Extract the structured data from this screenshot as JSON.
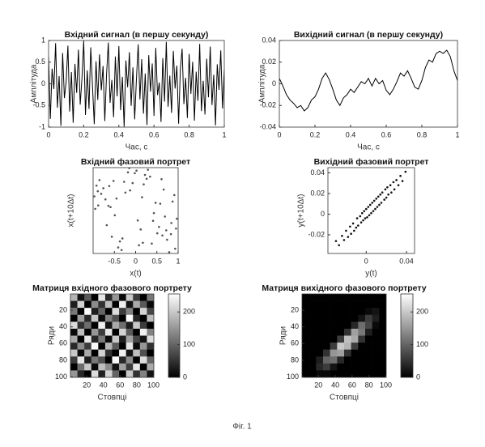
{
  "chart_data": [
    {
      "type": "line",
      "title": "Вхідний сигнал (в першу секунду)",
      "xlabel": "Час, с",
      "ylabel": "Амплітуда",
      "color": "#000000",
      "x": [
        0,
        0.01,
        0.02,
        0.03,
        0.04,
        0.05,
        0.06,
        0.07,
        0.08,
        0.09,
        0.1,
        0.11,
        0.12,
        0.13,
        0.14,
        0.15,
        0.16,
        0.17,
        0.18,
        0.19,
        0.2,
        0.21,
        0.22,
        0.23,
        0.24,
        0.25,
        0.26,
        0.27,
        0.28,
        0.29,
        0.3,
        0.31,
        0.32,
        0.33,
        0.34,
        0.35,
        0.36,
        0.37,
        0.38,
        0.39,
        0.4,
        0.41,
        0.42,
        0.43,
        0.44,
        0.45,
        0.46,
        0.47,
        0.48,
        0.49,
        0.5,
        0.51,
        0.52,
        0.53,
        0.54,
        0.55,
        0.56,
        0.57,
        0.58,
        0.59,
        0.6,
        0.61,
        0.62,
        0.63,
        0.64,
        0.65,
        0.66,
        0.67,
        0.68,
        0.69,
        0.7,
        0.71,
        0.72,
        0.73,
        0.74,
        0.75,
        0.76,
        0.77,
        0.78,
        0.79,
        0.8,
        0.81,
        0.82,
        0.83,
        0.84,
        0.85,
        0.86,
        0.87,
        0.88,
        0.89,
        0.9,
        0.91,
        0.92,
        0.93,
        0.94,
        0.95,
        0.96,
        0.97,
        0.98,
        0.99,
        1
      ],
      "values": [
        0.62,
        -0.81,
        0.35,
        -0.12,
        0.94,
        -0.55,
        0.18,
        -0.97,
        0.71,
        -0.33,
        0.05,
        0.88,
        -0.64,
        0.27,
        -0.9,
        0.46,
        -0.21,
        0.79,
        -0.48,
        0.13,
        0.99,
        -0.72,
        0.31,
        -0.58,
        0.84,
        -0.06,
        -0.93,
        0.52,
        -0.37,
        0.68,
        -0.15,
        0.41,
        -0.86,
        0.22,
        0.95,
        -0.44,
        0.09,
        -0.77,
        0.63,
        -0.29,
        0.87,
        -0.61,
        0.16,
        -0.99,
        0.54,
        -0.08,
        0.73,
        -0.51,
        0.38,
        -0.82,
        0.11,
        0.91,
        -0.36,
        0.57,
        -0.69,
        0.24,
        -0.95,
        0.66,
        -0.18,
        0.47,
        -0.74,
        0.83,
        -0.26,
        0.03,
        -0.88,
        0.59,
        -0.41,
        0.97,
        -0.53,
        0.19,
        -0.67,
        0.76,
        -0.11,
        0.42,
        -0.92,
        0.34,
        0.81,
        -0.47,
        0.14,
        -0.79,
        0.69,
        -0.23,
        0.51,
        -0.85,
        0.28,
        -0.39,
        0.92,
        -0.63,
        0.07,
        -0.71,
        0.58,
        -0.31,
        0.86,
        -0.49,
        0.21,
        -0.96,
        0.45,
        -0.14,
        0.77,
        -0.57,
        0.33
      ],
      "xlim": [
        0,
        1
      ],
      "xticks": [
        0,
        0.2,
        0.4,
        0.6,
        0.8,
        1
      ],
      "ylim": [
        -1,
        1
      ],
      "yticks": [
        -1,
        -0.5,
        0,
        0.5,
        1
      ]
    },
    {
      "type": "line",
      "title": "Вихідний сигнал (в першу секунду)",
      "xlabel": "Час, с",
      "ylabel": "Амплітуда",
      "color": "#000000",
      "x": [
        0,
        0.02,
        0.04,
        0.06,
        0.08,
        0.1,
        0.12,
        0.14,
        0.16,
        0.18,
        0.2,
        0.22,
        0.24,
        0.26,
        0.28,
        0.3,
        0.32,
        0.34,
        0.36,
        0.38,
        0.4,
        0.42,
        0.44,
        0.46,
        0.48,
        0.5,
        0.52,
        0.54,
        0.56,
        0.58,
        0.6,
        0.62,
        0.64,
        0.66,
        0.68,
        0.7,
        0.72,
        0.74,
        0.76,
        0.78,
        0.8,
        0.82,
        0.84,
        0.86,
        0.88,
        0.9,
        0.92,
        0.94,
        0.96,
        0.98,
        1
      ],
      "values": [
        0.005,
        -0.002,
        -0.01,
        -0.015,
        -0.018,
        -0.022,
        -0.02,
        -0.025,
        -0.022,
        -0.015,
        -0.012,
        -0.005,
        0.005,
        0.01,
        0.004,
        -0.005,
        -0.015,
        -0.02,
        -0.013,
        -0.01,
        -0.005,
        -0.008,
        -0.003,
        0.002,
        0,
        0.005,
        -0.002,
        0.005,
        0,
        0.003,
        -0.006,
        -0.01,
        -0.005,
        0.002,
        0.01,
        0.007,
        0.012,
        0.005,
        -0.003,
        -0.005,
        0.003,
        0.015,
        0.022,
        0.02,
        0.028,
        0.03,
        0.028,
        0.031,
        0.025,
        0.012,
        0.003
      ],
      "xlim": [
        0,
        1
      ],
      "xticks": [
        0,
        0.2,
        0.4,
        0.6,
        0.8,
        1
      ],
      "ylim": [
        -0.04,
        0.04
      ],
      "yticks": [
        -0.04,
        -0.02,
        0,
        0.02,
        0.04
      ]
    },
    {
      "type": "scatter",
      "title": "Вхідний фазовий портрет",
      "xlabel": "x(t)",
      "ylabel": "x(t+10Δt)",
      "color": "#555555",
      "x": [
        0.12,
        -0.85,
        0.47,
        -0.33,
        0.91,
        -0.62,
        0.05,
        0.74,
        -0.18,
        -0.95,
        0.38,
        0.66,
        -0.49,
        0.22,
        -0.71,
        0.83,
        -0.07,
        0.55,
        -0.88,
        0.29,
        -0.41,
        0.97,
        -0.24,
        0.61,
        -0.56,
        0.15,
        0.79,
        -0.92,
        0.43,
        -0.13,
        0.87,
        -0.68,
        0.34,
        -0.37,
        0.02,
        0.69,
        -0.81,
        0.51,
        -0.27,
        0.93,
        -0.59,
        0.19,
        0.72,
        -0.45,
        0.08,
        -0.76,
        0.58,
        -0.02,
        0.84,
        -0.31,
        0.26,
        -0.97,
        0.63,
        -0.15,
        0.41,
        -0.64,
        0.95,
        -0.52,
        0.17,
        -0.89
      ],
      "y": [
        -0.44,
        0.71,
        0.18,
        -0.92,
        0.36,
        0.57,
        -0.23,
        -0.68,
        0.89,
        0.04,
        -0.77,
        0.49,
        -0.11,
        0.83,
        0.26,
        -0.55,
        0.64,
        -0.38,
        0.12,
        0.95,
        -0.86,
        -0.19,
        0.42,
        0.73,
        -0.61,
        0.31,
        -0.97,
        0.58,
        -0.06,
        0.47,
        0.21,
        -0.34,
        0.79,
        -0.72,
        0.93,
        -0.14,
        0.39,
        -0.53,
        0.67,
        -0.89,
        0.08,
        0.61,
        -0.46,
        0.28,
        -0.81,
        0.52,
        0.16,
        0.87,
        -0.29,
        -0.65,
        0.74,
        0.33,
        -0.58,
        0.99,
        -0.24,
        0.11,
        -0.42,
        0.69,
        -0.75,
        0.45
      ],
      "xlim": [
        -1,
        1
      ],
      "xticks": [
        -0.5,
        0,
        0.5,
        1
      ],
      "ylim": [
        -1,
        1
      ]
    },
    {
      "type": "scatter",
      "title": "Вихідний фазовий портрет",
      "xlabel": "y(t)",
      "ylabel": "y(t+10Δt)",
      "color": "#111111",
      "x": [
        -0.03,
        -0.027,
        -0.024,
        -0.022,
        -0.02,
        -0.018,
        -0.016,
        -0.015,
        -0.013,
        -0.012,
        -0.01,
        -0.009,
        -0.008,
        -0.006,
        -0.005,
        -0.004,
        -0.003,
        -0.002,
        -0.001,
        0,
        0.001,
        0.002,
        0.003,
        0.004,
        0.005,
        0.006,
        0.007,
        0.008,
        0.009,
        0.01,
        0.011,
        0.012,
        0.013,
        0.014,
        0.015,
        0.016,
        0.018,
        0.019,
        0.02,
        0.021,
        0.022,
        0.024,
        0.025,
        0.027,
        0.028,
        0.03,
        0.032,
        0.034,
        0.036,
        0.039
      ],
      "y": [
        -0.026,
        -0.03,
        -0.021,
        -0.025,
        -0.016,
        -0.022,
        -0.012,
        -0.019,
        -0.009,
        -0.016,
        -0.013,
        -0.004,
        -0.011,
        -0.002,
        -0.008,
        0.001,
        -0.006,
        0.003,
        -0.004,
        0.005,
        -0.003,
        0.007,
        -0.001,
        0.009,
        0.001,
        0.011,
        0.003,
        0.013,
        0.005,
        0.015,
        0.007,
        0.017,
        0.009,
        0.019,
        0.011,
        0.021,
        0.014,
        0.024,
        0.016,
        0.026,
        0.019,
        0.028,
        0.021,
        0.031,
        0.024,
        0.033,
        0.028,
        0.037,
        0.032,
        0.041
      ],
      "xlim": [
        -0.038,
        0.048
      ],
      "xticks": [
        0,
        0.04
      ],
      "ylim": [
        -0.038,
        0.045
      ],
      "yticks": [
        -0.02,
        0,
        0.02,
        0.04
      ]
    },
    {
      "type": "heatmap",
      "title": "Матриця вхідного фазового портрету",
      "xlabel": "Стовпці",
      "ylabel": "Ряди",
      "z": [
        [
          180,
          20,
          90,
          0,
          230,
          40,
          150,
          10,
          200,
          60,
          0,
          120
        ],
        [
          30,
          210,
          0,
          140,
          50,
          190,
          0,
          240,
          20,
          170,
          90,
          10
        ],
        [
          120,
          0,
          250,
          30,
          100,
          0,
          220,
          60,
          130,
          0,
          210,
          70
        ],
        [
          0,
          160,
          40,
          200,
          10,
          130,
          80,
          0,
          250,
          40,
          0,
          190
        ],
        [
          220,
          50,
          110,
          0,
          240,
          20,
          170,
          110,
          30,
          200,
          60,
          0
        ],
        [
          10,
          190,
          0,
          150,
          60,
          230,
          0,
          210,
          90,
          0,
          240,
          130
        ],
        [
          170,
          0,
          230,
          40,
          120,
          10,
          200,
          30,
          160,
          70,
          20,
          220
        ],
        [
          40,
          140,
          60,
          250,
          0,
          180,
          90,
          0,
          230,
          10,
          150,
          50
        ],
        [
          200,
          10,
          170,
          0,
          210,
          50,
          0,
          240,
          20,
          190,
          80,
          0
        ],
        [
          60,
          230,
          30,
          120,
          80,
          0,
          250,
          40,
          140,
          0,
          220,
          100
        ],
        [
          0,
          110,
          200,
          10,
          190,
          140,
          20,
          160,
          60,
          230,
          0,
          170
        ],
        [
          150,
          40,
          0,
          220,
          30,
          210,
          100,
          0,
          200,
          50,
          130,
          20
        ]
      ],
      "xlim": [
        0.5,
        100.5
      ],
      "xticks": [
        20,
        40,
        60,
        80,
        100
      ],
      "ylim": [
        0.5,
        100.5
      ],
      "yticks": [
        20,
        40,
        60,
        80,
        100
      ],
      "y_reversed": true,
      "clim": [
        0,
        255
      ],
      "cticks": [
        0,
        100,
        200
      ],
      "colormap": "gray"
    },
    {
      "type": "heatmap",
      "title": "Матриця вихідного фазового портрету",
      "xlabel": "Стовпці",
      "ylabel": "Ряди",
      "z": [
        [
          0,
          0,
          0,
          0,
          0,
          0,
          0,
          0,
          0,
          0,
          0,
          0
        ],
        [
          0,
          0,
          0,
          0,
          0,
          0,
          0,
          0,
          0,
          0,
          0,
          0
        ],
        [
          0,
          0,
          0,
          0,
          0,
          0,
          0,
          0,
          0,
          10,
          20,
          0
        ],
        [
          0,
          0,
          0,
          0,
          0,
          0,
          0,
          0,
          20,
          60,
          30,
          0
        ],
        [
          0,
          0,
          0,
          0,
          0,
          0,
          0,
          40,
          110,
          70,
          10,
          0
        ],
        [
          0,
          0,
          0,
          0,
          0,
          0,
          50,
          160,
          120,
          30,
          0,
          0
        ],
        [
          0,
          0,
          0,
          0,
          0,
          60,
          190,
          170,
          50,
          0,
          0,
          0
        ],
        [
          0,
          0,
          0,
          0,
          60,
          200,
          180,
          60,
          0,
          0,
          0,
          0
        ],
        [
          0,
          0,
          0,
          50,
          150,
          160,
          50,
          0,
          0,
          0,
          0,
          0
        ],
        [
          0,
          0,
          30,
          100,
          110,
          40,
          0,
          0,
          0,
          0,
          0,
          0
        ],
        [
          0,
          0,
          40,
          60,
          20,
          0,
          0,
          0,
          0,
          0,
          0,
          0
        ],
        [
          0,
          0,
          10,
          10,
          0,
          0,
          0,
          0,
          0,
          0,
          0,
          0
        ]
      ],
      "xlim": [
        0.5,
        100.5
      ],
      "xticks": [
        20,
        40,
        60,
        80,
        100
      ],
      "ylim": [
        0.5,
        100.5
      ],
      "yticks": [
        20,
        40,
        60,
        80,
        100
      ],
      "y_reversed": true,
      "clim": [
        0,
        255
      ],
      "cticks": [
        0,
        100,
        200
      ],
      "colormap": "gray"
    }
  ],
  "caption": "Фіг. 1"
}
